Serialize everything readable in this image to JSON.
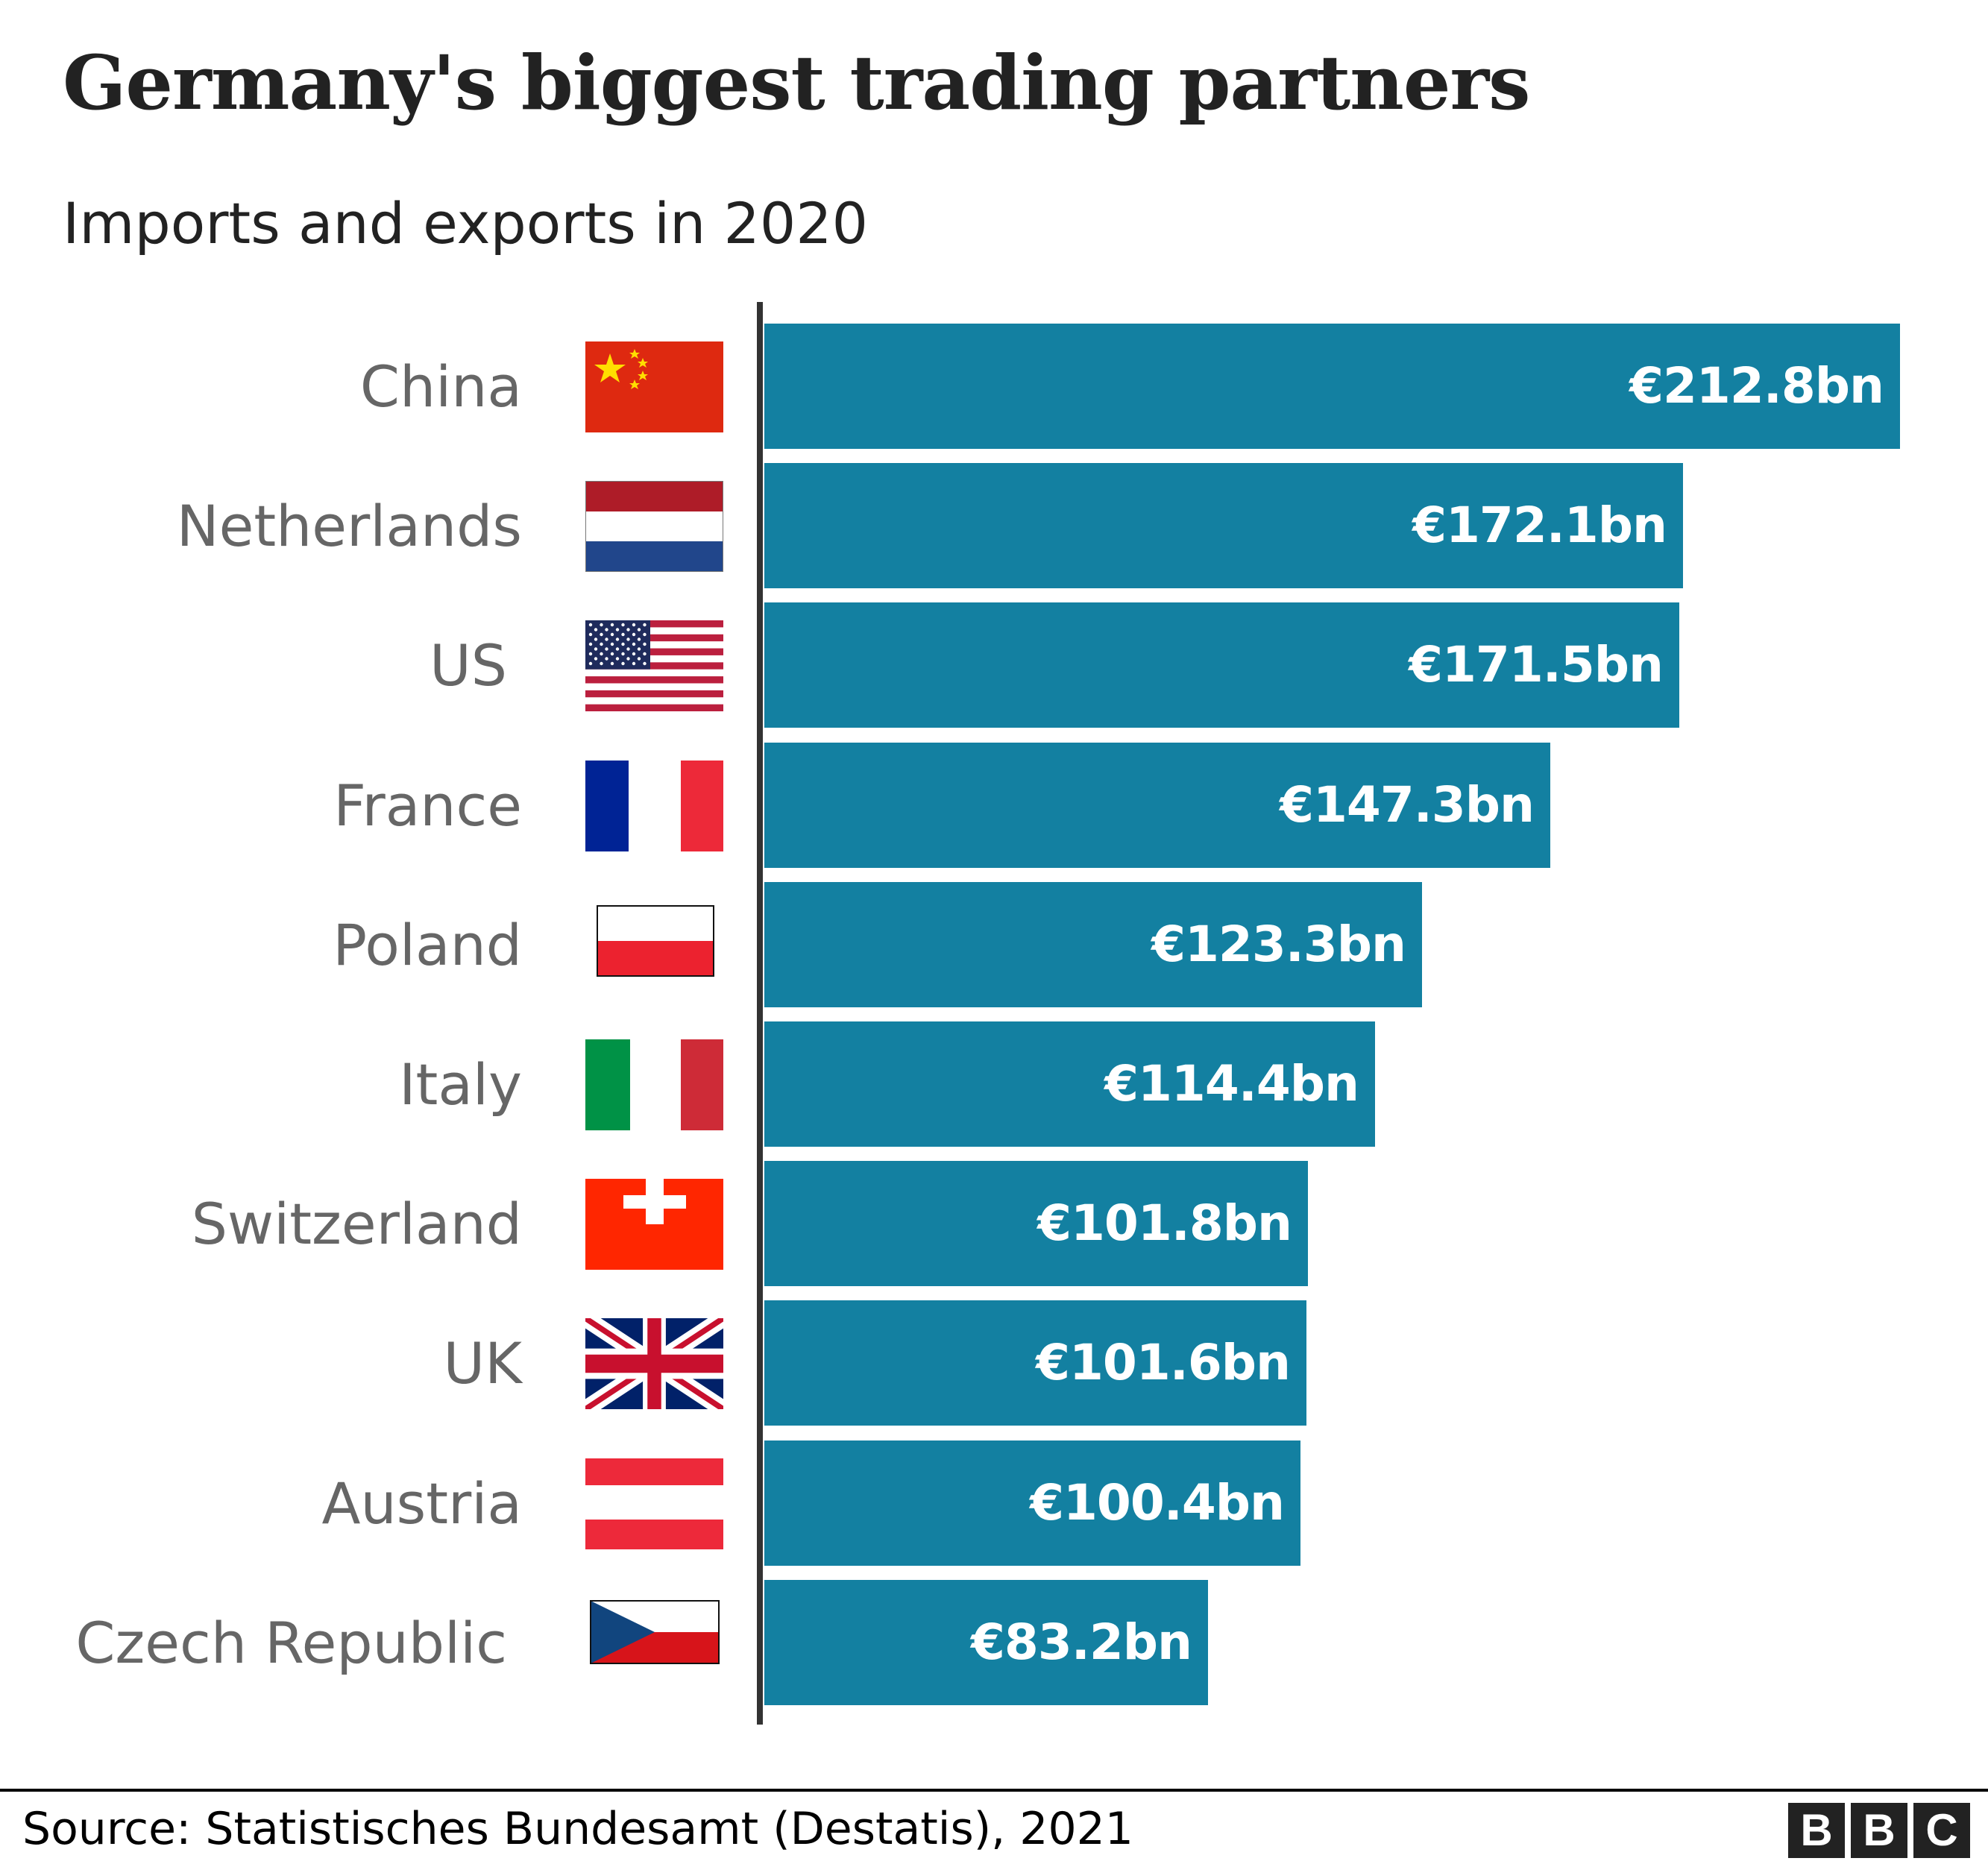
{
  "header": {
    "title": "Germany's biggest trading partners",
    "subtitle": "Imports and exports in 2020"
  },
  "footer": {
    "source": "Source:  Statistisches Bundesamt (Destatis), 2021",
    "logo": [
      "B",
      "B",
      "C"
    ]
  },
  "colors": {
    "bar": "#1380a1",
    "axis": "#333333",
    "label": "#666666",
    "title": "#222222"
  },
  "rows": [
    {
      "country": "China",
      "value": 212.8,
      "label": "€212.8bn",
      "flag": "china-flag"
    },
    {
      "country": "Netherlands",
      "value": 172.1,
      "label": "€172.1bn",
      "flag": "netherlands-flag"
    },
    {
      "country": "US",
      "value": 171.5,
      "label": "€171.5bn",
      "flag": "us-flag"
    },
    {
      "country": "France",
      "value": 147.3,
      "label": "€147.3bn",
      "flag": "france-flag"
    },
    {
      "country": "Poland",
      "value": 123.3,
      "label": "€123.3bn",
      "flag": "poland-flag"
    },
    {
      "country": "Italy",
      "value": 114.4,
      "label": "€114.4bn",
      "flag": "italy-flag"
    },
    {
      "country": "Switzerland",
      "value": 101.8,
      "label": "€101.8bn",
      "flag": "switzerland-flag"
    },
    {
      "country": "UK",
      "value": 101.6,
      "label": "€101.6bn",
      "flag": "uk-flag"
    },
    {
      "country": "Austria",
      "value": 100.4,
      "label": "€100.4bn",
      "flag": "austria-flag"
    },
    {
      "country": "Czech Republic",
      "value": 83.2,
      "label": "€83.2bn",
      "flag": "czech-republic-flag"
    }
  ],
  "chart_data": {
    "type": "bar",
    "orientation": "horizontal",
    "title": "Germany's biggest trading partners",
    "subtitle": "Imports and exports in 2020",
    "categories": [
      "China",
      "Netherlands",
      "US",
      "France",
      "Poland",
      "Italy",
      "Switzerland",
      "UK",
      "Austria",
      "Czech Republic"
    ],
    "values": [
      212.8,
      172.1,
      171.5,
      147.3,
      123.3,
      114.4,
      101.8,
      101.6,
      100.4,
      83.2
    ],
    "value_labels": [
      "€212.8bn",
      "€172.1bn",
      "€171.5bn",
      "€147.3bn",
      "€123.3bn",
      "€114.4bn",
      "€101.8bn",
      "€101.6bn",
      "€100.4bn",
      "€83.2bn"
    ],
    "unit": "€bn",
    "xlabel": "",
    "ylabel": "",
    "grid": false,
    "legend": null,
    "source": "Statistisches Bundesamt (Destatis), 2021"
  }
}
